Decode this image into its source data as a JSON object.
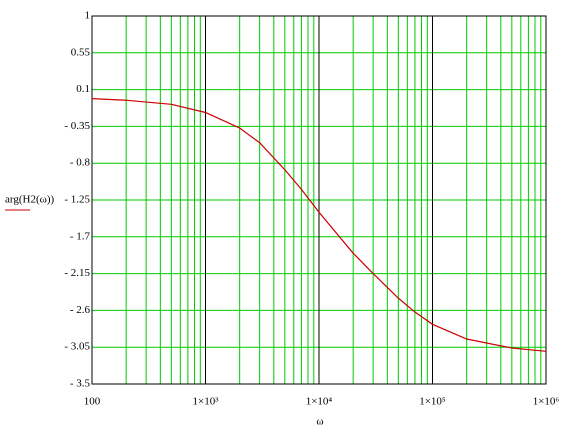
{
  "chart_data": {
    "type": "line",
    "ylabel": "arg(H2(ω))",
    "xlabel": "ω",
    "x": [
      100,
      200,
      500,
      1000,
      2000,
      3000,
      5000,
      7000,
      10000,
      20000,
      30000,
      50000,
      70000,
      100000,
      200000,
      500000,
      1000000
    ],
    "series": [
      {
        "name": "arg(H2(ω))",
        "color": "#cc0000",
        "values": [
          -0.01,
          -0.03,
          -0.08,
          -0.18,
          -0.37,
          -0.55,
          -0.88,
          -1.12,
          -1.4,
          -1.9,
          -2.15,
          -2.45,
          -2.62,
          -2.77,
          -2.95,
          -3.06,
          -3.1
        ]
      }
    ],
    "xscale": "log",
    "xlim": [
      100,
      1000000
    ],
    "xticks": [
      100,
      {
        "value": 1000,
        "label": "1×10³"
      },
      {
        "value": 10000,
        "label": "1×10⁴"
      },
      {
        "value": 100000,
        "label": "1×10⁵"
      },
      {
        "value": 1000000,
        "label": "1×10⁶"
      }
    ],
    "ylim": [
      -3.5,
      1
    ],
    "yticks": [
      1,
      0.55,
      0.1,
      {
        "value": -0.35,
        "label": "- 0.35"
      },
      {
        "value": -0.8,
        "label": "- 0.8"
      },
      {
        "value": -1.25,
        "label": "- 1.25"
      },
      {
        "value": -1.7,
        "label": "- 1.7"
      },
      {
        "value": -2.15,
        "label": "- 2.15"
      },
      {
        "value": -2.6,
        "label": "- 2.6"
      },
      {
        "value": -3.05,
        "label": "- 3.05"
      },
      {
        "value": -3.5,
        "label": "- 3.5"
      }
    ],
    "grid": true,
    "grid_color": "#00cc00"
  }
}
